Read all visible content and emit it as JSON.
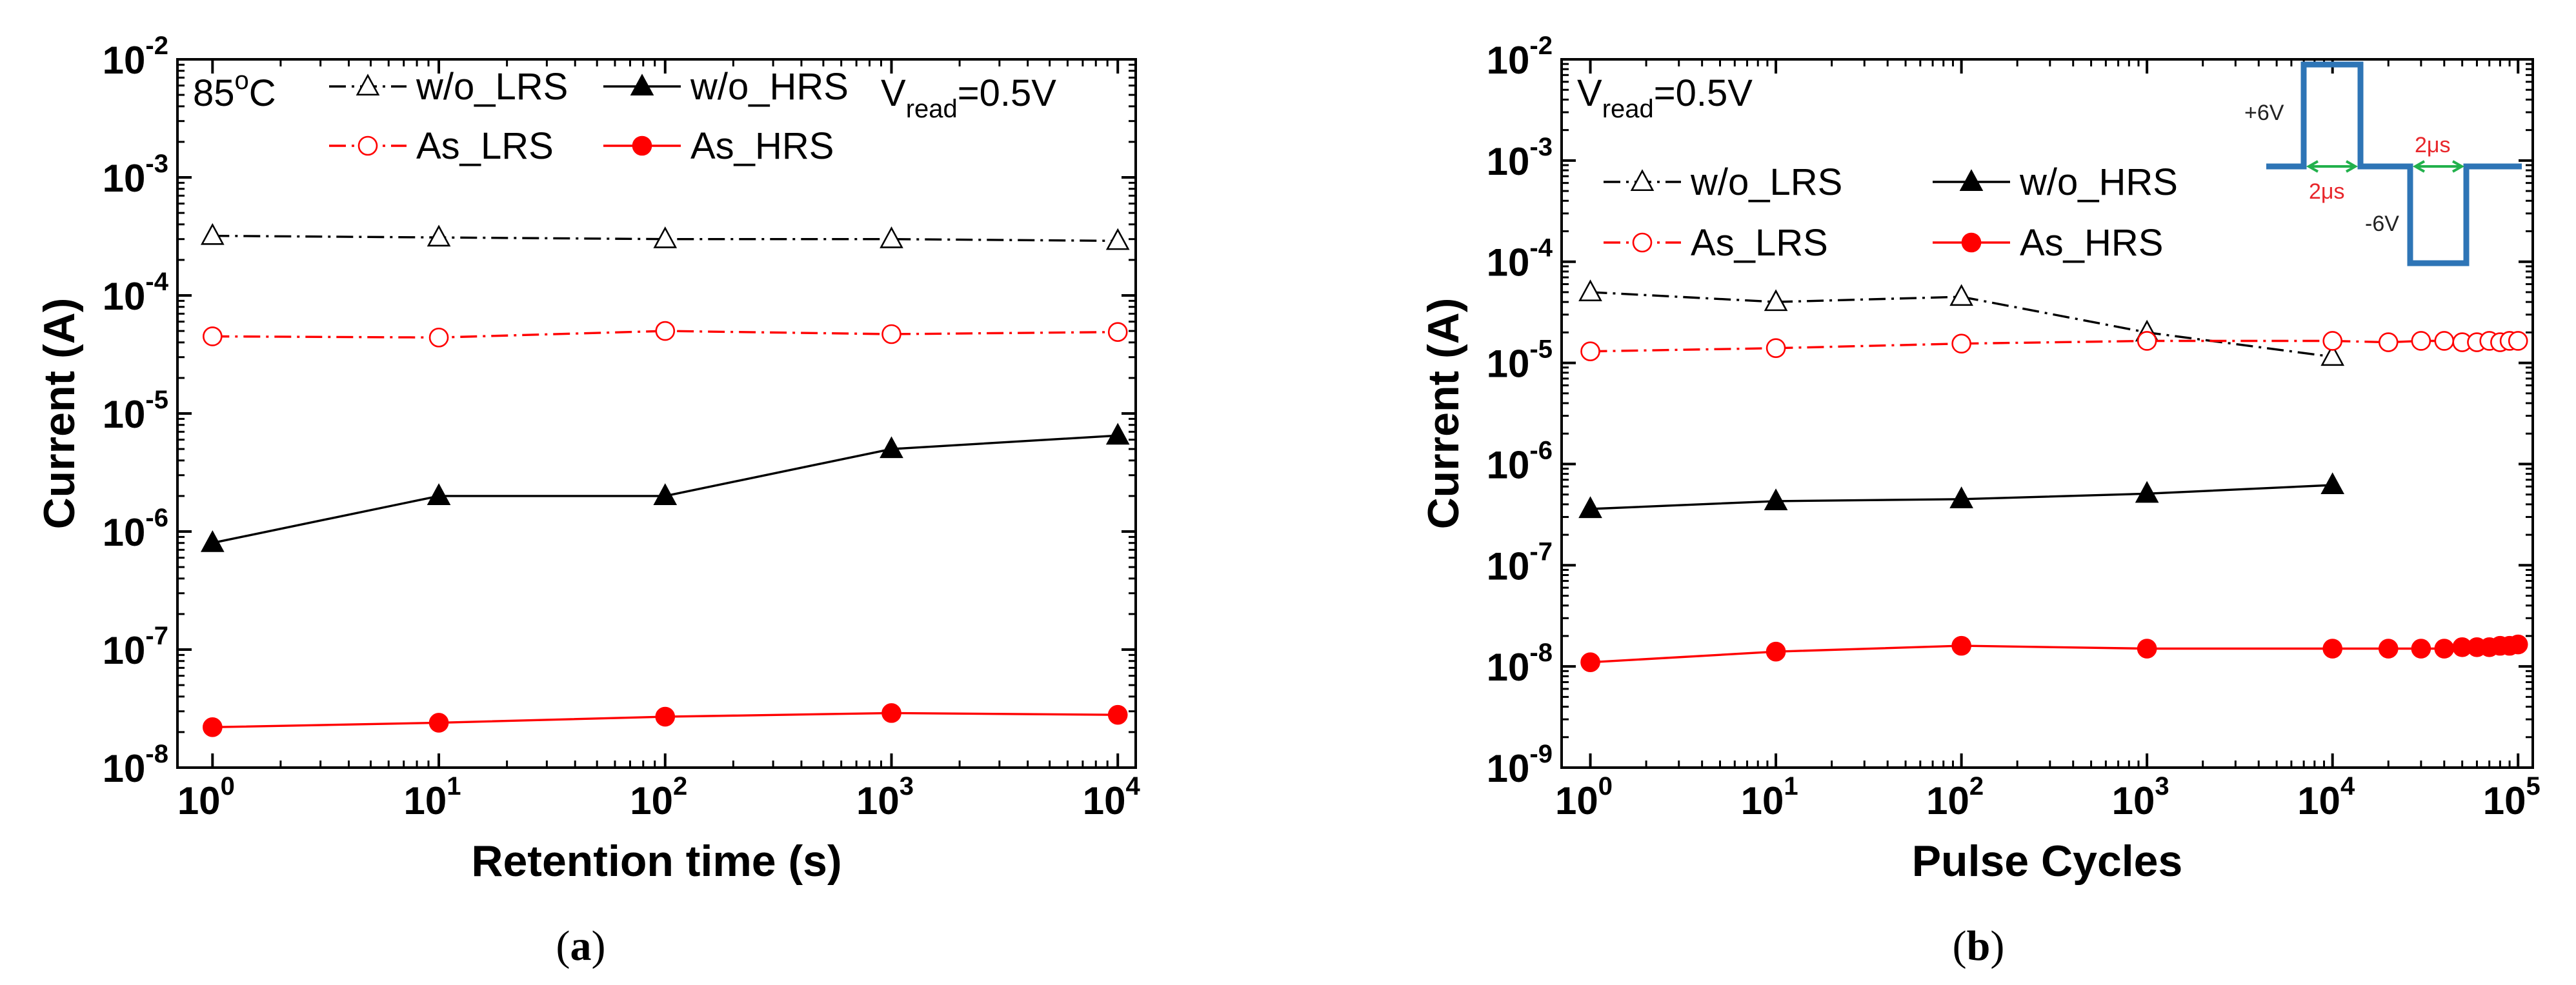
{
  "chart_data": [
    {
      "type": "line",
      "panel": "a",
      "caption_open": "(",
      "caption_letter": "a",
      "caption_close": ")",
      "xlabel": "Retention time (s)",
      "ylabel": "Current (A)",
      "xscale": "log",
      "yscale": "log",
      "xlim": [
        0.7,
        12000
      ],
      "ylim": [
        1e-08,
        0.01
      ],
      "xticks": [
        {
          "base": "10",
          "exp": "0"
        },
        {
          "base": "10",
          "exp": "1"
        },
        {
          "base": "10",
          "exp": "2"
        },
        {
          "base": "10",
          "exp": "3"
        },
        {
          "base": "10",
          "exp": "4"
        }
      ],
      "yticks": [
        {
          "base": "10",
          "exp": "-8"
        },
        {
          "base": "10",
          "exp": "-7"
        },
        {
          "base": "10",
          "exp": "-6"
        },
        {
          "base": "10",
          "exp": "-5"
        },
        {
          "base": "10",
          "exp": "-4"
        },
        {
          "base": "10",
          "exp": "-3"
        },
        {
          "base": "10",
          "exp": "-2"
        }
      ],
      "annotations": {
        "temperature": {
          "pre": "85",
          "sup": "o",
          "post": "C"
        },
        "vread": {
          "pre": "V",
          "sub": "read",
          "post": "=0.5V"
        }
      },
      "legend_location": "top",
      "series": [
        {
          "name": "w/o_LRS",
          "color": "#000000",
          "style": "dashdot",
          "marker": "triangle-open",
          "x": [
            1,
            10,
            100,
            1000,
            10000
          ],
          "y": [
            0.00032,
            0.00031,
            0.0003,
            0.0003,
            0.00029
          ]
        },
        {
          "name": "w/o_HRS",
          "color": "#000000",
          "style": "solid",
          "marker": "triangle-filled",
          "x": [
            1,
            10,
            100,
            1000,
            10000
          ],
          "y": [
            8e-07,
            2e-06,
            2e-06,
            5e-06,
            6.5e-06
          ]
        },
        {
          "name": "As_LRS",
          "color": "#ff0000",
          "style": "dashdot",
          "marker": "circle-open",
          "x": [
            1,
            10,
            100,
            1000,
            10000
          ],
          "y": [
            4.5e-05,
            4.4e-05,
            5e-05,
            4.7e-05,
            4.9e-05
          ]
        },
        {
          "name": "As_HRS",
          "color": "#ff0000",
          "style": "solid",
          "marker": "circle-filled",
          "x": [
            1,
            10,
            100,
            1000,
            10000
          ],
          "y": [
            2.2e-08,
            2.4e-08,
            2.7e-08,
            2.9e-08,
            2.8e-08
          ]
        }
      ]
    },
    {
      "type": "line",
      "panel": "b",
      "caption_open": "(",
      "caption_letter": "b",
      "caption_close": ")",
      "xlabel": "Pulse Cycles",
      "ylabel": "Current (A)",
      "xscale": "log",
      "yscale": "log",
      "xlim": [
        0.7,
        120000
      ],
      "ylim": [
        1e-09,
        0.01
      ],
      "xticks": [
        {
          "base": "10",
          "exp": "0"
        },
        {
          "base": "10",
          "exp": "1"
        },
        {
          "base": "10",
          "exp": "2"
        },
        {
          "base": "10",
          "exp": "3"
        },
        {
          "base": "10",
          "exp": "4"
        },
        {
          "base": "10",
          "exp": "5"
        }
      ],
      "yticks": [
        {
          "base": "10",
          "exp": "-9"
        },
        {
          "base": "10",
          "exp": "-8"
        },
        {
          "base": "10",
          "exp": "-7"
        },
        {
          "base": "10",
          "exp": "-6"
        },
        {
          "base": "10",
          "exp": "-5"
        },
        {
          "base": "10",
          "exp": "-4"
        },
        {
          "base": "10",
          "exp": "-3"
        },
        {
          "base": "10",
          "exp": "-2"
        }
      ],
      "annotations": {
        "vread": {
          "pre": "V",
          "sub": "read",
          "post": "=0.5V"
        }
      },
      "inset": {
        "pos_label": "+6V",
        "neg_label": "-6V",
        "width_label_1": "2μs",
        "width_label_2": "2μs",
        "wave_color": "#2e75b6",
        "arrow_color": "#22b14c",
        "label_color": "#e8262b"
      },
      "legend_location": "top",
      "series": [
        {
          "name": "w/o_LRS",
          "color": "#000000",
          "style": "dashdot",
          "marker": "triangle-open",
          "x": [
            1,
            10,
            100,
            1000,
            10000
          ],
          "y": [
            5e-05,
            4e-05,
            4.5e-05,
            2e-05,
            1.15e-05
          ]
        },
        {
          "name": "w/o_HRS",
          "color": "#000000",
          "style": "solid",
          "marker": "triangle-filled",
          "x": [
            1,
            10,
            100,
            1000,
            10000
          ],
          "y": [
            3.6e-07,
            4.3e-07,
            4.5e-07,
            5.1e-07,
            6.2e-07
          ]
        },
        {
          "name": "As_LRS",
          "color": "#ff0000",
          "style": "dashdot",
          "marker": "circle-open",
          "x": [
            1,
            10,
            100,
            1000,
            10000,
            20000,
            30000,
            40000,
            50000,
            60000,
            70000,
            80000,
            90000,
            100000
          ],
          "y": [
            1.3e-05,
            1.4e-05,
            1.55e-05,
            1.65e-05,
            1.65e-05,
            1.6e-05,
            1.65e-05,
            1.65e-05,
            1.6e-05,
            1.6e-05,
            1.65e-05,
            1.6e-05,
            1.65e-05,
            1.65e-05
          ]
        },
        {
          "name": "As_HRS",
          "color": "#ff0000",
          "style": "solid",
          "marker": "circle-filled",
          "x": [
            1,
            10,
            100,
            1000,
            10000,
            20000,
            30000,
            40000,
            50000,
            60000,
            70000,
            80000,
            90000,
            100000
          ],
          "y": [
            1.1e-08,
            1.4e-08,
            1.6e-08,
            1.5e-08,
            1.5e-08,
            1.5e-08,
            1.5e-08,
            1.5e-08,
            1.55e-08,
            1.55e-08,
            1.55e-08,
            1.6e-08,
            1.6e-08,
            1.65e-08
          ]
        }
      ]
    }
  ]
}
